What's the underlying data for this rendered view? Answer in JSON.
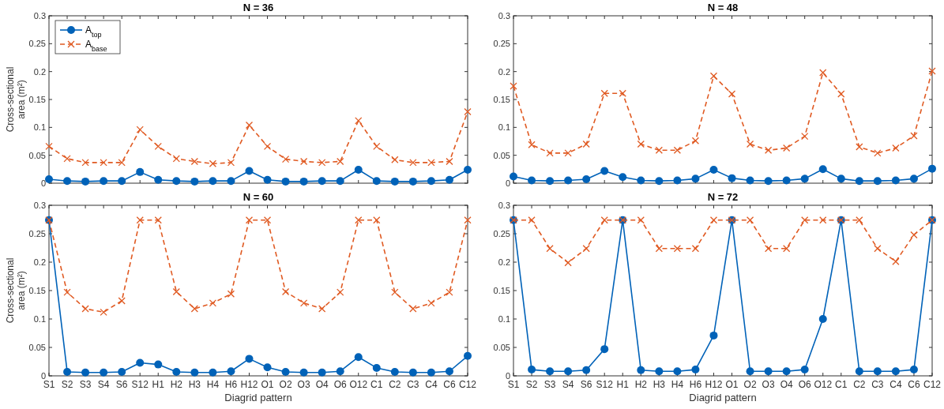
{
  "chart_data": [
    {
      "type": "line",
      "title": "N = 36",
      "ylabel": "Cross-sectional area (m²)",
      "categories": [
        null,
        null,
        null,
        null,
        null,
        null,
        null,
        null,
        null,
        null,
        null,
        null,
        null,
        null,
        null,
        null,
        null,
        null,
        null,
        null,
        null,
        null,
        null,
        null
      ],
      "ylim": [
        0,
        0.3
      ],
      "yticks": [
        0,
        0.05,
        0.1,
        0.15,
        0.2,
        0.25,
        0.3
      ],
      "tick_labels": "y",
      "legend": "top left",
      "grid": false,
      "series": [
        {
          "name": "A$_{top}$",
          "color": "#0062b8",
          "marker": "circle",
          "line_style": "solid",
          "values": [
            0.007,
            0.004,
            0.003,
            0.004,
            0.004,
            0.02,
            0.006,
            0.004,
            0.003,
            0.004,
            0.004,
            0.022,
            0.006,
            0.003,
            0.003,
            0.004,
            0.004,
            0.024,
            0.004,
            0.003,
            0.003,
            0.004,
            0.006,
            0.024
          ]
        },
        {
          "name": "A$_{base}$",
          "color": "#e05a22",
          "marker": "cross",
          "line_style": "dashed",
          "values": [
            0.066,
            0.044,
            0.037,
            0.037,
            0.037,
            0.096,
            0.066,
            0.044,
            0.039,
            0.035,
            0.037,
            0.104,
            0.066,
            0.043,
            0.039,
            0.037,
            0.039,
            0.112,
            0.066,
            0.042,
            0.037,
            0.037,
            0.039,
            0.128
          ]
        }
      ]
    },
    {
      "type": "line",
      "title": "N = 48",
      "categories": [
        null,
        null,
        null,
        null,
        null,
        null,
        null,
        null,
        null,
        null,
        null,
        null,
        null,
        null,
        null,
        null,
        null,
        null,
        null,
        null,
        null,
        null,
        null,
        null
      ],
      "ylim": [
        0,
        0.3
      ],
      "yticks": [
        0,
        0.05,
        0.1,
        0.15,
        0.2,
        0.25,
        0.3
      ],
      "tick_labels": "y",
      "grid": false,
      "series": [
        {
          "color": "#0062b8",
          "marker": "circle",
          "line_style": "solid",
          "values": [
            0.012,
            0.005,
            0.004,
            0.005,
            0.007,
            0.022,
            0.011,
            0.005,
            0.004,
            0.005,
            0.008,
            0.024,
            0.009,
            0.005,
            0.004,
            0.005,
            0.008,
            0.025,
            0.008,
            0.004,
            0.004,
            0.005,
            0.008,
            0.026
          ]
        },
        {
          "color": "#e05a22",
          "marker": "cross",
          "line_style": "dashed",
          "values": [
            0.174,
            0.069,
            0.054,
            0.054,
            0.07,
            0.161,
            0.161,
            0.07,
            0.059,
            0.059,
            0.076,
            0.192,
            0.16,
            0.07,
            0.059,
            0.063,
            0.084,
            0.198,
            0.16,
            0.065,
            0.054,
            0.063,
            0.085,
            0.201
          ]
        }
      ]
    },
    {
      "type": "line",
      "title": "N = 60",
      "xlabel": "Diagrid pattern",
      "ylabel": "Cross-sectional area (m²)",
      "categories": [
        "S1",
        "S2",
        "S3",
        "S4",
        "S6",
        "S12",
        "H1",
        "H2",
        "H3",
        "H4",
        "H6",
        "H12",
        "O1",
        "O2",
        "O3",
        "O4",
        "O6",
        "O12",
        "C1",
        "C2",
        "C3",
        "C4",
        "C6",
        "C12"
      ],
      "ylim": [
        0,
        0.3
      ],
      "yticks": [
        0,
        0.05,
        0.1,
        0.15,
        0.2,
        0.25,
        0.3
      ],
      "grid": false,
      "series": [
        {
          "color": "#0062b8",
          "marker": "circle",
          "line_style": "solid",
          "values": [
            0.274,
            0.007,
            0.006,
            0.006,
            0.007,
            0.023,
            0.02,
            0.007,
            0.006,
            0.006,
            0.008,
            0.03,
            0.015,
            0.007,
            0.006,
            0.006,
            0.008,
            0.033,
            0.014,
            0.007,
            0.006,
            0.006,
            0.008,
            0.035
          ]
        },
        {
          "color": "#e05a22",
          "marker": "cross",
          "line_style": "dashed",
          "values": [
            0.274,
            0.147,
            0.118,
            0.112,
            0.132,
            0.274,
            0.274,
            0.148,
            0.118,
            0.128,
            0.144,
            0.274,
            0.274,
            0.148,
            0.128,
            0.118,
            0.147,
            0.274,
            0.274,
            0.147,
            0.118,
            0.128,
            0.147,
            0.274
          ]
        }
      ]
    },
    {
      "type": "line",
      "title": "N = 72",
      "xlabel": "Diagrid pattern",
      "categories": [
        "S1",
        "S2",
        "S3",
        "S4",
        "S6",
        "S12",
        "H1",
        "H2",
        "H3",
        "H4",
        "H6",
        "H12",
        "O1",
        "O2",
        "O3",
        "O4",
        "O6",
        "O12",
        "C1",
        "C2",
        "C3",
        "C4",
        "C6",
        "C12"
      ],
      "ylim": [
        0,
        0.3
      ],
      "yticks": [
        0,
        0.05,
        0.1,
        0.15,
        0.2,
        0.25,
        0.3
      ],
      "grid": false,
      "series": [
        {
          "color": "#0062b8",
          "marker": "circle",
          "line_style": "solid",
          "values": [
            0.274,
            0.011,
            0.008,
            0.008,
            0.01,
            0.047,
            0.274,
            0.01,
            0.008,
            0.008,
            0.011,
            0.071,
            0.274,
            0.008,
            0.008,
            0.008,
            0.011,
            0.1,
            0.274,
            0.008,
            0.008,
            0.008,
            0.011,
            0.274
          ]
        },
        {
          "color": "#e05a22",
          "marker": "cross",
          "line_style": "dashed",
          "values": [
            0.274,
            0.274,
            0.224,
            0.199,
            0.224,
            0.274,
            0.274,
            0.274,
            0.224,
            0.224,
            0.224,
            0.274,
            0.274,
            0.274,
            0.224,
            0.224,
            0.274,
            0.274,
            0.274,
            0.274,
            0.224,
            0.201,
            0.248,
            0.274
          ]
        }
      ]
    }
  ]
}
